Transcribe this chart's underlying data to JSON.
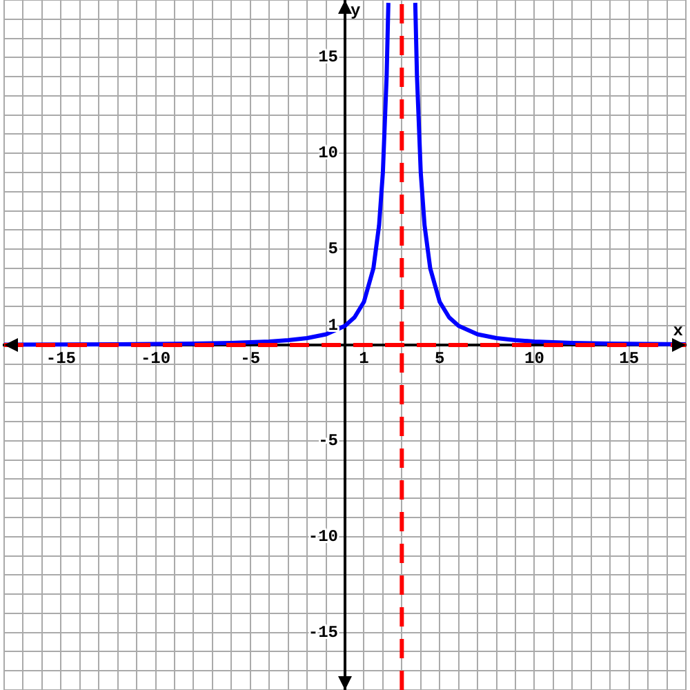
{
  "chart_data": {
    "type": "line",
    "xlabel": "x",
    "ylabel": "y",
    "xlim": [
      -18,
      18
    ],
    "ylim": [
      -18,
      18
    ],
    "xticks": [
      {
        "value": -18,
        "label": null
      },
      {
        "value": -17,
        "label": null
      },
      {
        "value": -16,
        "label": null
      },
      -15,
      {
        "value": -14,
        "label": null
      },
      {
        "value": -13,
        "label": null
      },
      {
        "value": -12,
        "label": null
      },
      {
        "value": -11,
        "label": null
      },
      -10,
      {
        "value": -9,
        "label": null
      },
      {
        "value": -8,
        "label": null
      },
      {
        "value": -7,
        "label": null
      },
      {
        "value": -6,
        "label": null
      },
      -5,
      {
        "value": -4,
        "label": null
      },
      {
        "value": -3,
        "label": null
      },
      {
        "value": -2,
        "label": null
      },
      {
        "value": -1,
        "label": null
      },
      {
        "value": 0,
        "label": null
      },
      1,
      {
        "value": 2,
        "label": null
      },
      {
        "value": 3,
        "label": null
      },
      {
        "value": 4,
        "label": null
      },
      5,
      {
        "value": 6,
        "label": null
      },
      {
        "value": 7,
        "label": null
      },
      {
        "value": 8,
        "label": null
      },
      {
        "value": 9,
        "label": null
      },
      10,
      {
        "value": 11,
        "label": null
      },
      {
        "value": 12,
        "label": null
      },
      {
        "value": 13,
        "label": null
      },
      {
        "value": 14,
        "label": null
      },
      15,
      {
        "value": 16,
        "label": null
      },
      {
        "value": 17,
        "label": null
      },
      {
        "value": 18,
        "label": null
      }
    ],
    "yticks": [
      {
        "value": -18,
        "label": null
      },
      {
        "value": -17,
        "label": null
      },
      {
        "value": -16,
        "label": null
      },
      -15,
      {
        "value": -14,
        "label": null
      },
      {
        "value": -13,
        "label": null
      },
      {
        "value": -12,
        "label": null
      },
      {
        "value": -11,
        "label": null
      },
      -10,
      {
        "value": -9,
        "label": null
      },
      {
        "value": -8,
        "label": null
      },
      {
        "value": -7,
        "label": null
      },
      {
        "value": -6,
        "label": null
      },
      -5,
      {
        "value": -4,
        "label": null
      },
      {
        "value": -3,
        "label": null
      },
      {
        "value": -2,
        "label": null
      },
      {
        "value": -1,
        "label": null
      },
      {
        "value": 0,
        "label": null
      },
      1,
      {
        "value": 2,
        "label": null
      },
      {
        "value": 3,
        "label": null
      },
      {
        "value": 4,
        "label": null
      },
      5,
      {
        "value": 6,
        "label": null
      },
      {
        "value": 7,
        "label": null
      },
      {
        "value": 8,
        "label": null
      },
      {
        "value": 9,
        "label": null
      },
      10,
      {
        "value": 11,
        "label": null
      },
      {
        "value": 12,
        "label": null
      },
      {
        "value": 13,
        "label": null
      },
      {
        "value": 14,
        "label": null
      },
      15,
      {
        "value": 16,
        "label": null
      },
      {
        "value": 17,
        "label": null
      },
      {
        "value": 18,
        "label": null
      }
    ],
    "grid": true,
    "marker": "none",
    "line_style": "solid",
    "series": [
      {
        "color": "#0000ff",
        "x": [
          -18,
          -15,
          -12,
          -10,
          -8,
          -6,
          -5,
          -4,
          -3,
          -2,
          -1,
          0,
          0.5,
          1,
          1.5,
          1.8,
          2,
          2.2,
          2.29,
          null,
          3.71,
          3.8,
          4,
          4.2,
          4.5,
          5,
          5.5,
          6,
          7,
          8,
          9,
          10,
          12,
          14,
          16,
          18
        ],
        "values": [
          0.02,
          0.03,
          0.04,
          0.05,
          0.07,
          0.11,
          0.14,
          0.18,
          0.25,
          0.36,
          0.56,
          1,
          1.44,
          2.25,
          4,
          6.25,
          9,
          14.06,
          17.85,
          null,
          17.85,
          14.06,
          9,
          6.25,
          4,
          2.25,
          1.44,
          1,
          0.56,
          0.36,
          0.25,
          0.18,
          0.11,
          0.07,
          0.05,
          0.04
        ]
      },
      {
        "color": "#ff0000",
        "line_style": "dashed",
        "x": [
          3,
          3
        ],
        "values": [
          -18,
          18
        ]
      },
      {
        "color": "#ff0000",
        "line_style": "dashed",
        "x": [
          -18,
          18
        ],
        "values": [
          0,
          0
        ]
      }
    ]
  }
}
